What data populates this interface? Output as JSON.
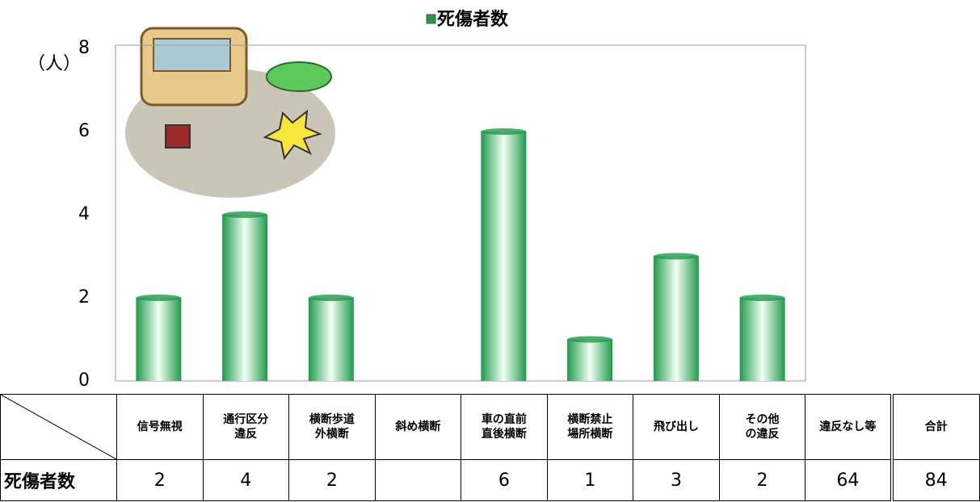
{
  "chart_data": {
    "type": "bar",
    "y_label": "（人）",
    "categories": [
      "信号無視",
      "通行区分\n違反",
      "横断歩道\n外横断",
      "斜め横断",
      "車の直前\n直後横断",
      "横断禁止\n場所横断",
      "飛び出し",
      "その他\nの違反"
    ],
    "series": [
      {
        "name": "死傷者数",
        "color": "#1f9a4a",
        "values": [
          2,
          4,
          2,
          null,
          6,
          1,
          3,
          2
        ]
      }
    ],
    "ylim": [
      0,
      8
    ],
    "yticks": [
      0,
      2,
      4,
      6,
      8
    ],
    "grid": false
  },
  "table": {
    "extra_columns": [
      {
        "label": "違反なし等",
        "value": 64
      },
      {
        "label": "合計",
        "value": 84
      }
    ]
  }
}
